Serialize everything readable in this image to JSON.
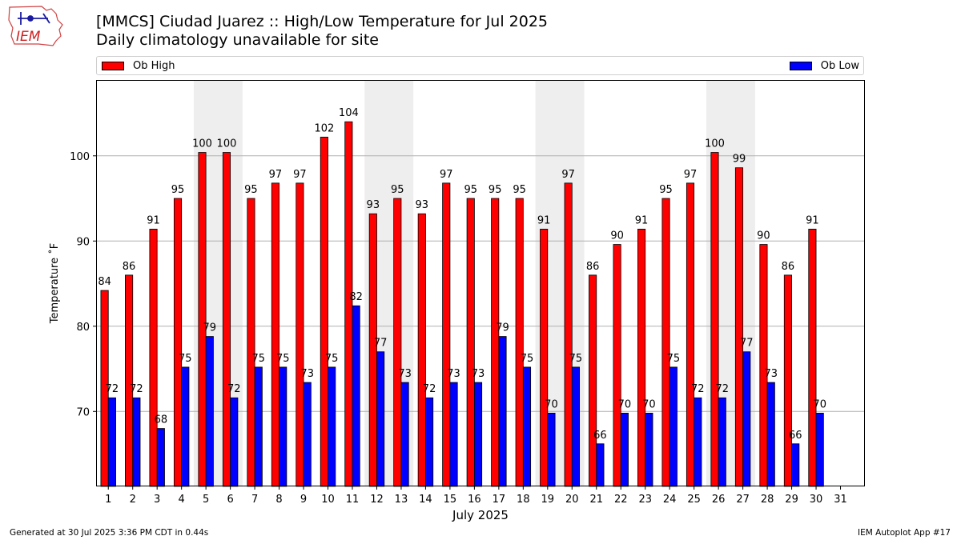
{
  "logo": {
    "text": "IEM"
  },
  "header": {
    "title": "[MMCS] Ciudad Juarez :: High/Low Temperature for Jul 2025",
    "subtitle": "Daily climatology unavailable for site"
  },
  "footer": {
    "generated": "Generated at 30 Jul 2025 3:36 PM CDT in 0.44s",
    "app": "IEM Autoplot App #17"
  },
  "chart_data": {
    "type": "bar",
    "title": "[MMCS] Ciudad Juarez :: High/Low Temperature for Jul 2025",
    "subtitle": "Daily climatology unavailable for site",
    "xlabel": "July 2025",
    "ylabel": "Temperature ˚F",
    "categories": [
      "1",
      "2",
      "3",
      "4",
      "5",
      "6",
      "7",
      "8",
      "9",
      "10",
      "11",
      "12",
      "13",
      "14",
      "15",
      "16",
      "17",
      "18",
      "19",
      "20",
      "21",
      "22",
      "23",
      "24",
      "25",
      "26",
      "27",
      "28",
      "29",
      "30",
      "31"
    ],
    "series": [
      {
        "name": "Ob High",
        "color": "#ff0000",
        "values": [
          84.2,
          86.0,
          91.4,
          95.0,
          100.4,
          100.4,
          95.0,
          96.8,
          96.8,
          102.2,
          104.0,
          93.2,
          95.0,
          93.2,
          96.8,
          95.0,
          95.0,
          95.0,
          91.4,
          96.8,
          86.0,
          89.6,
          91.4,
          95.0,
          96.8,
          100.4,
          98.6,
          89.6,
          86.0,
          91.4,
          null
        ],
        "labels": [
          "84",
          "86",
          "91",
          "95",
          "100",
          "100",
          "95",
          "97",
          "97",
          "102",
          "104",
          "93",
          "95",
          "93",
          "97",
          "95",
          "95",
          "95",
          "91",
          "97",
          "86",
          "90",
          "91",
          "95",
          "97",
          "100",
          "99",
          "90",
          "86",
          "91",
          ""
        ]
      },
      {
        "name": "Ob Low",
        "color": "#0000ff",
        "values": [
          71.6,
          71.6,
          68.0,
          75.2,
          78.8,
          71.6,
          75.2,
          75.2,
          73.4,
          75.2,
          82.4,
          77.0,
          73.4,
          71.6,
          73.4,
          73.4,
          78.8,
          75.2,
          69.8,
          75.2,
          66.2,
          69.8,
          69.8,
          75.2,
          71.6,
          71.6,
          77.0,
          73.4,
          66.2,
          69.8,
          null
        ],
        "labels": [
          "72",
          "72",
          "68",
          "75",
          "79",
          "72",
          "75",
          "75",
          "73",
          "75",
          "82",
          "77",
          "73",
          "72",
          "73",
          "73",
          "79",
          "75",
          "70",
          "75",
          "66",
          "70",
          "70",
          "75",
          "72",
          "72",
          "77",
          "73",
          "66",
          "70",
          ""
        ]
      }
    ],
    "weekend_shading": [
      [
        5,
        6
      ],
      [
        12,
        13
      ],
      [
        19,
        20
      ],
      [
        26,
        27
      ]
    ],
    "ylim": [
      61.2,
      108.9
    ],
    "yticks": [
      70,
      80,
      90,
      100
    ],
    "grid": "horizontal",
    "legend_position": "top"
  }
}
